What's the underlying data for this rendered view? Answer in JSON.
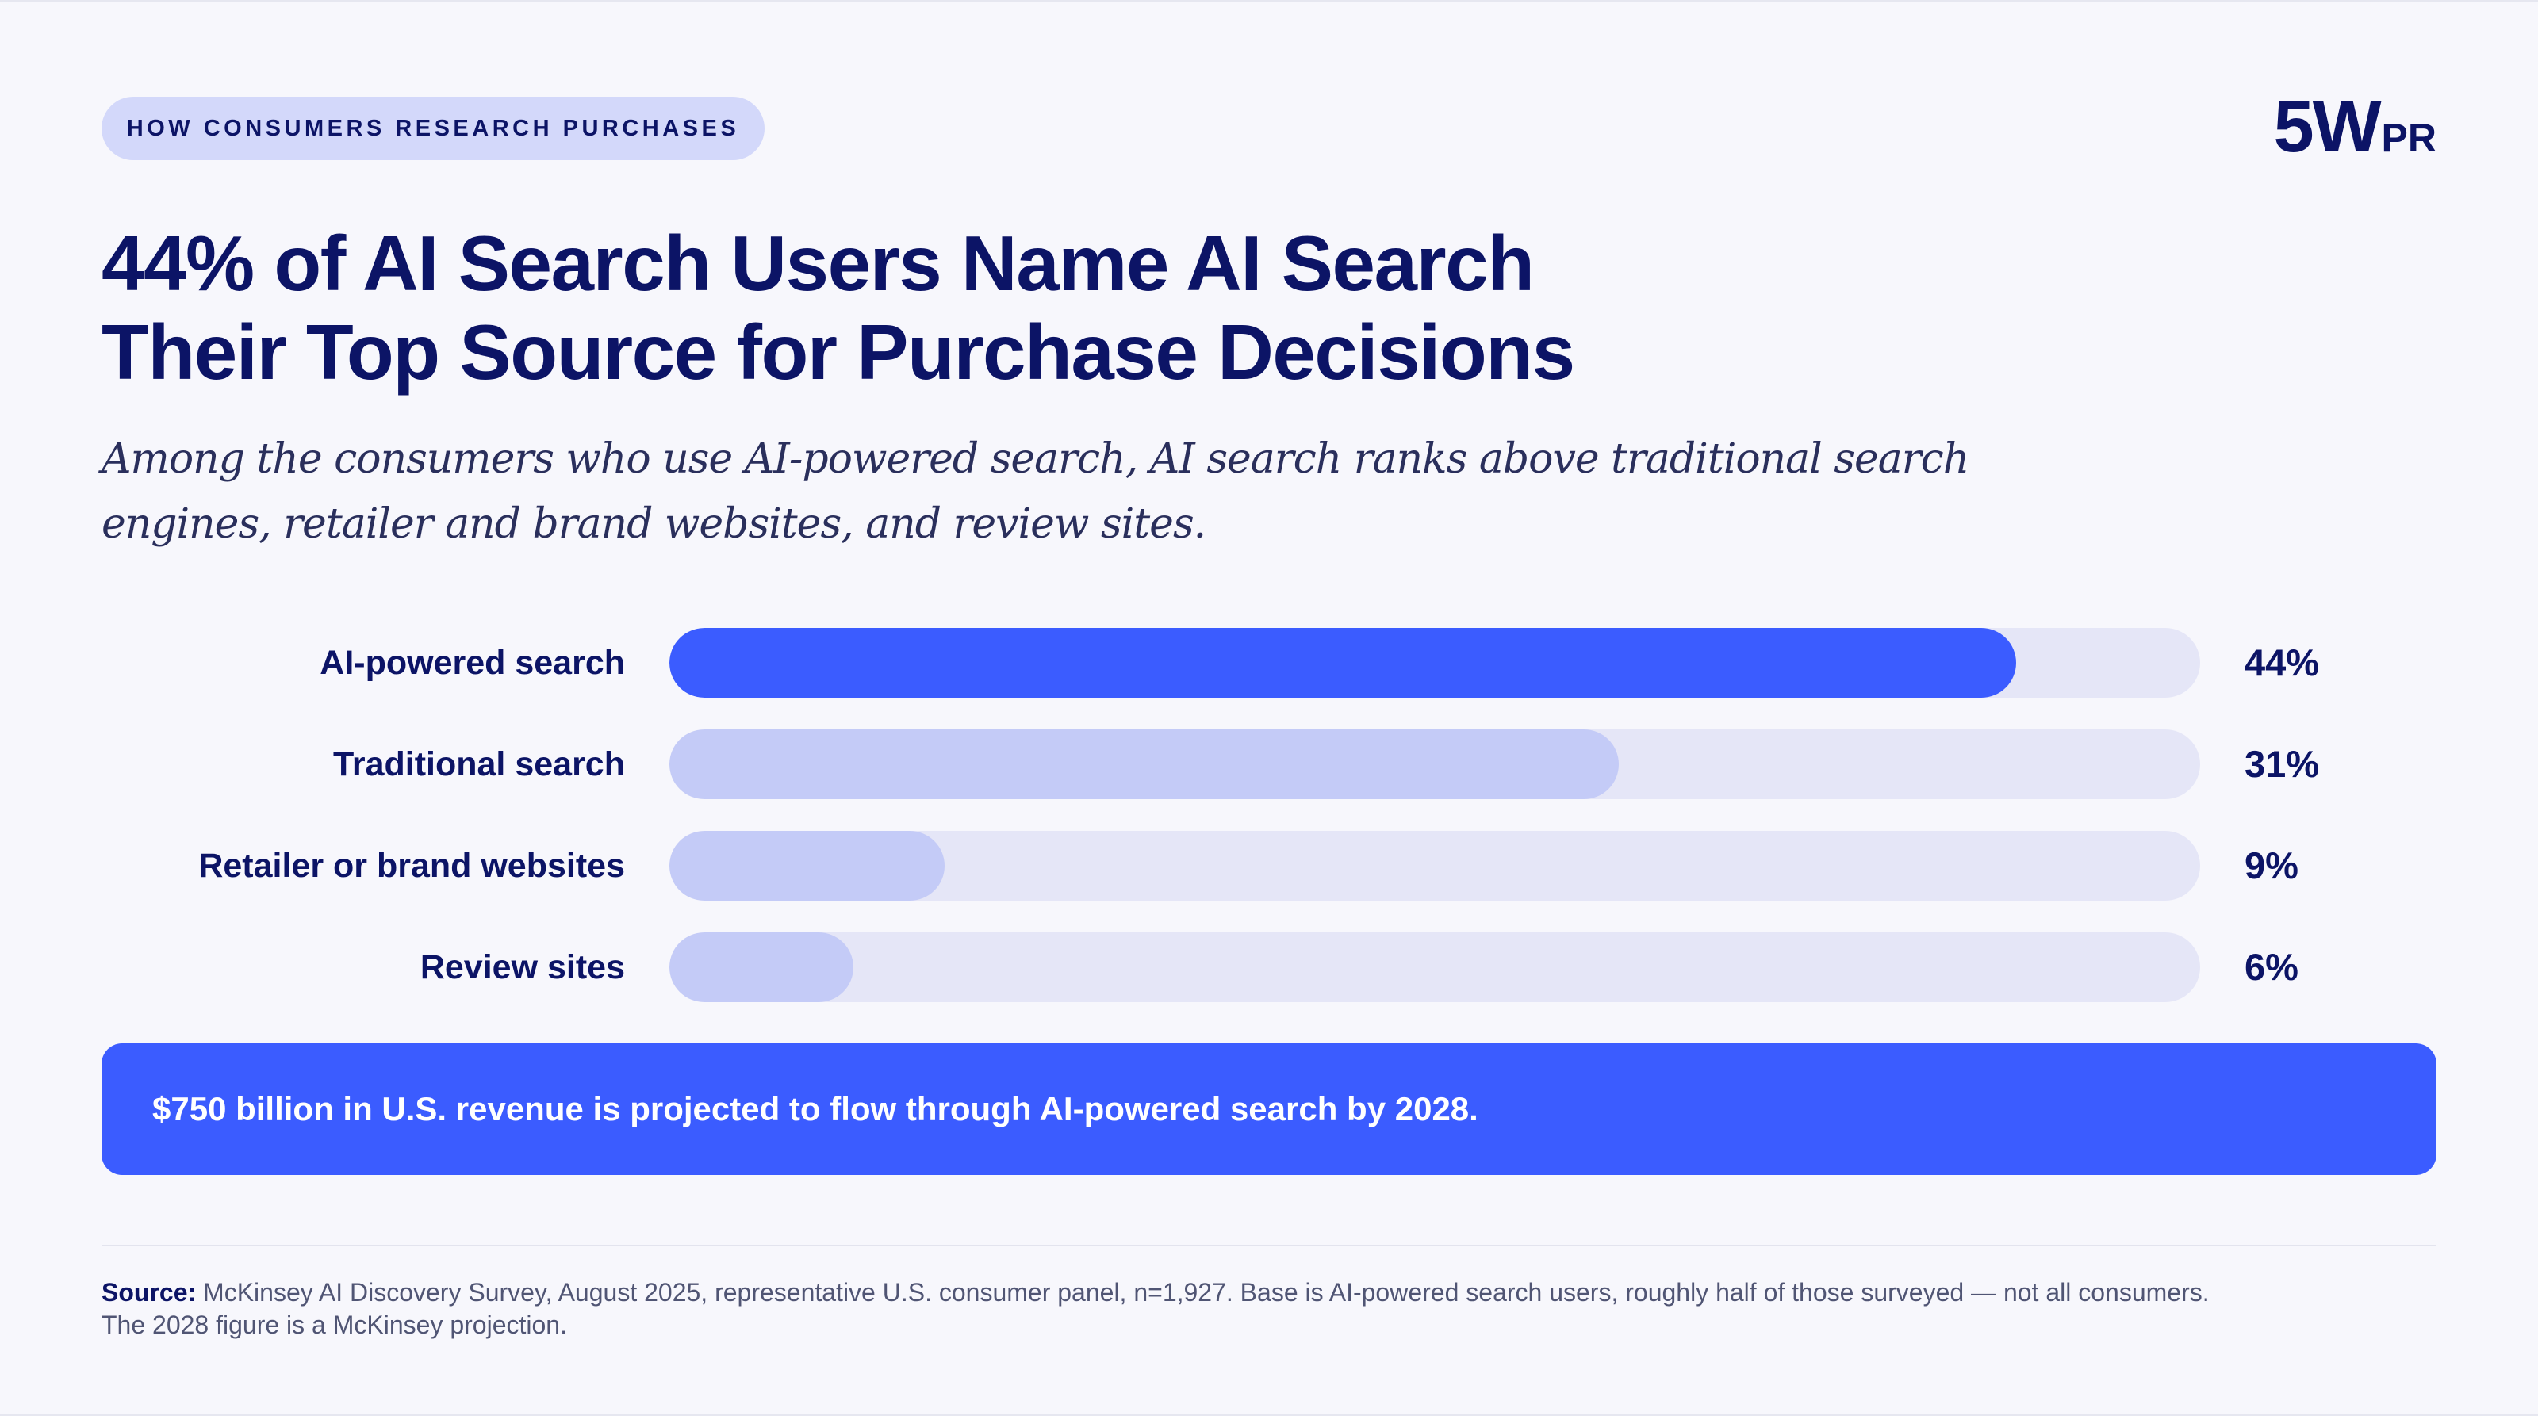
{
  "header": {
    "eyebrow": "HOW CONSUMERS RESEARCH PURCHASES",
    "logo_main": "5W",
    "logo_sub": "PR"
  },
  "title_lines": [
    "44% of AI Search Users Name AI Search",
    "Their Top Source for Purchase Decisions"
  ],
  "subtitle_lines": [
    "Among the consumers who use AI-powered search, AI search ranks above traditional search",
    "engines, retailer and brand websites, and review sites."
  ],
  "chart_data": {
    "type": "bar",
    "orientation": "horizontal",
    "categories": [
      "AI-powered search",
      "Traditional search",
      "Retailer or brand websites",
      "Review sites"
    ],
    "values": [
      44,
      31,
      9,
      6
    ],
    "value_labels": [
      "44%",
      "31%",
      "9%",
      "6%"
    ],
    "xlim": [
      0,
      50
    ],
    "grid": false,
    "highlight_color": "#3b5cff",
    "muted_color": "#c4cbf7",
    "track_color": "#e5e6f7"
  },
  "callout": {
    "text": "$750 billion in U.S. revenue is projected to flow through AI-powered search by 2028."
  },
  "source": {
    "label": "Source:",
    "line1": "McKinsey AI Discovery Survey, August 2025, representative U.S. consumer panel, n=1,927. Base is AI-powered search users, roughly half of those surveyed — not all consumers.",
    "line2": "The 2028 figure is a McKinsey projection."
  }
}
